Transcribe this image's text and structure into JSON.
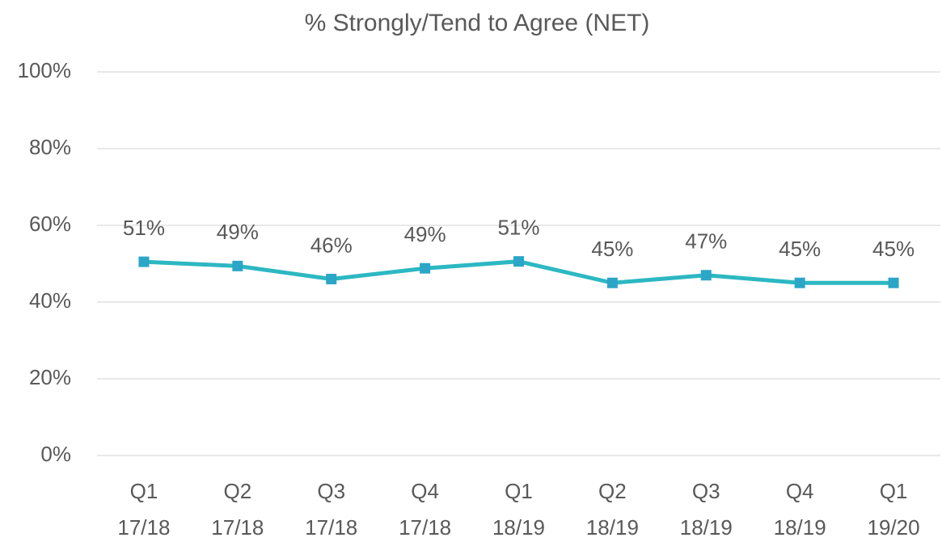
{
  "chart_data": {
    "type": "line",
    "title": "% Strongly/Tend to Agree (NET)",
    "categories": [
      "Q1\n17/18",
      "Q2\n17/18",
      "Q3\n17/18",
      "Q4\n17/18",
      "Q1\n18/19",
      "Q2\n18/19",
      "Q3\n18/19",
      "Q4\n18/19",
      "Q1\n19/20"
    ],
    "series": [
      {
        "name": "% Strongly/Tend to Agree (NET)",
        "color": "#2cb8c2",
        "marker_color": "#2ba6c7",
        "values": [
          50.5,
          49.4,
          46,
          48.8,
          50.6,
          45,
          47,
          45,
          45
        ],
        "value_labels": [
          "51%",
          "49%",
          "46%",
          "49%",
          "51%",
          "45%",
          "47%",
          "45%",
          "45%"
        ]
      }
    ],
    "ylim": [
      0,
      100
    ],
    "yticks": [
      {
        "value": 0,
        "label": "0%"
      },
      {
        "value": 20,
        "label": "20%"
      },
      {
        "value": 40,
        "label": "40%"
      },
      {
        "value": 60,
        "label": "60%"
      },
      {
        "value": 80,
        "label": "80%"
      },
      {
        "value": 100,
        "label": "100%"
      }
    ],
    "grid": true
  }
}
